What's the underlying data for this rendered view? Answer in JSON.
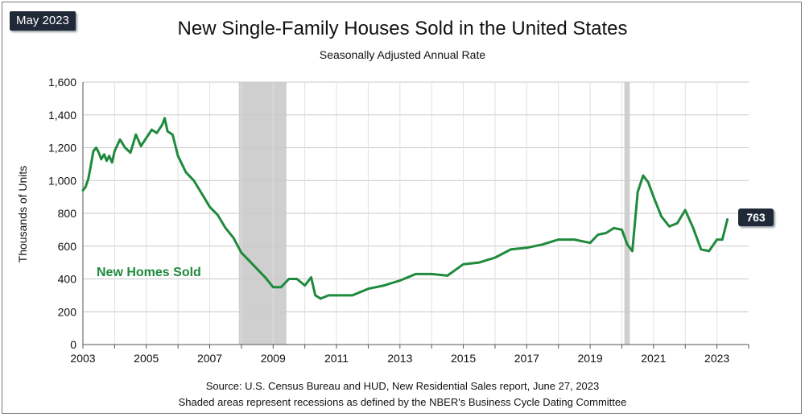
{
  "badge": {
    "date": "May 2023",
    "last_value": "763"
  },
  "title": "New Single-Family Houses Sold in the United States",
  "subtitle": "Seasonally Adjusted Annual Rate",
  "source": "Source:  U.S. Census Bureau and HUD, New Residential Sales report, June 27, 2023",
  "note": "Shaded areas represent recessions as defined by the NBER's Business Cycle Dating Committee",
  "colors": {
    "line": "#1e8a3c",
    "recession": "#cfcfcf",
    "badge": "#1f2937"
  },
  "chart_data": {
    "type": "line",
    "title": "New Single-Family Houses Sold in the United States",
    "subtitle": "Seasonally Adjusted Annual Rate",
    "ylabel": "Thousands of Units",
    "xlabel": "",
    "ylim": [
      0,
      1600
    ],
    "xlim": [
      2003,
      2024
    ],
    "yticks": [
      0,
      200,
      400,
      600,
      800,
      1000,
      1200,
      1400,
      1600
    ],
    "ytick_labels": [
      "0",
      "200",
      "400",
      "600",
      "800",
      "1,000",
      "1,200",
      "1,400",
      "1,600"
    ],
    "xticks": [
      2003,
      2005,
      2007,
      2009,
      2011,
      2013,
      2015,
      2017,
      2019,
      2021,
      2023
    ],
    "xtick_labels": [
      "2003",
      "2005",
      "2007",
      "2009",
      "2011",
      "2013",
      "2015",
      "2017",
      "2019",
      "2021",
      "2023"
    ],
    "grid": true,
    "recessions": [
      [
        2007.92,
        2009.42
      ],
      [
        2020.08,
        2020.25
      ]
    ],
    "series": [
      {
        "name": "New Homes Sold",
        "x": [
          2003.0,
          2003.08,
          2003.17,
          2003.25,
          2003.33,
          2003.42,
          2003.5,
          2003.58,
          2003.67,
          2003.75,
          2003.83,
          2003.92,
          2004.0,
          2004.17,
          2004.33,
          2004.5,
          2004.67,
          2004.83,
          2005.0,
          2005.17,
          2005.33,
          2005.5,
          2005.58,
          2005.67,
          2005.83,
          2006.0,
          2006.25,
          2006.5,
          2006.75,
          2007.0,
          2007.25,
          2007.5,
          2007.75,
          2008.0,
          2008.25,
          2008.5,
          2008.75,
          2009.0,
          2009.25,
          2009.5,
          2009.75,
          2010.0,
          2010.2,
          2010.33,
          2010.5,
          2010.75,
          2011.0,
          2011.5,
          2012.0,
          2012.5,
          2013.0,
          2013.5,
          2014.0,
          2014.5,
          2015.0,
          2015.5,
          2016.0,
          2016.5,
          2017.0,
          2017.5,
          2018.0,
          2018.5,
          2019.0,
          2019.25,
          2019.5,
          2019.75,
          2020.0,
          2020.17,
          2020.33,
          2020.5,
          2020.67,
          2020.83,
          2021.0,
          2021.25,
          2021.5,
          2021.75,
          2022.0,
          2022.25,
          2022.5,
          2022.75,
          2023.0,
          2023.17,
          2023.33
        ],
        "values": [
          940,
          960,
          1010,
          1090,
          1180,
          1200,
          1170,
          1130,
          1160,
          1120,
          1150,
          1110,
          1180,
          1250,
          1200,
          1170,
          1280,
          1210,
          1260,
          1310,
          1290,
          1340,
          1380,
          1300,
          1280,
          1150,
          1050,
          1000,
          920,
          840,
          790,
          710,
          650,
          560,
          510,
          460,
          410,
          350,
          350,
          400,
          400,
          360,
          410,
          300,
          280,
          300,
          300,
          300,
          340,
          360,
          390,
          430,
          430,
          420,
          490,
          500,
          530,
          580,
          590,
          610,
          640,
          640,
          620,
          670,
          680,
          710,
          700,
          610,
          570,
          930,
          1030,
          990,
          900,
          780,
          720,
          740,
          820,
          710,
          580,
          570,
          640,
          640,
          763
        ]
      }
    ]
  }
}
